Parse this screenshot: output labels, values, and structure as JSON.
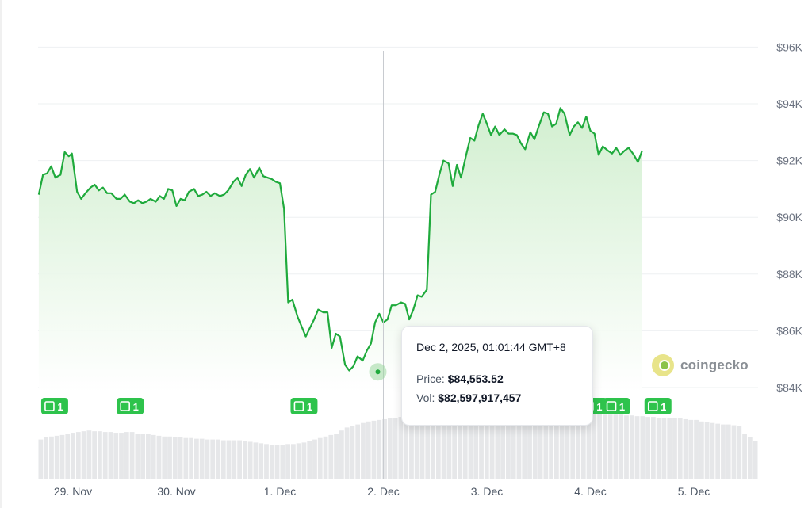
{
  "chart_data": {
    "type": "area",
    "title": "",
    "y_unit": "USD",
    "ylim": [
      83000,
      96000
    ],
    "y_ticks": [
      {
        "value": 84000,
        "label": "$84K"
      },
      {
        "value": 86000,
        "label": "$86K"
      },
      {
        "value": 88000,
        "label": "$88K"
      },
      {
        "value": 90000,
        "label": "$90K"
      },
      {
        "value": 92000,
        "label": "$92K"
      },
      {
        "value": 94000,
        "label": "$94K"
      },
      {
        "value": 96000,
        "label": "$96K"
      }
    ],
    "x_ticks": [
      {
        "t": 0.0,
        "label": "29. Nov"
      },
      {
        "t": 1.0,
        "label": "30. Nov"
      },
      {
        "t": 2.0,
        "label": "1. Dec"
      },
      {
        "t": 3.0,
        "label": "2. Dec"
      },
      {
        "t": 4.0,
        "label": "3. Dec"
      },
      {
        "t": 5.0,
        "label": "4. Dec"
      },
      {
        "t": 6.0,
        "label": "5. Dec"
      }
    ],
    "x_unit_note": "x values are days after 29 Nov 2025 00:00 (axis labels)",
    "grid": true,
    "line_color": "#1faa3c",
    "fill_color": "#dff3dc",
    "series": [
      {
        "values": [
          [
            -0.33,
            90800
          ],
          [
            -0.29,
            91500
          ],
          [
            -0.25,
            91550
          ],
          [
            -0.21,
            91800
          ],
          [
            -0.17,
            91400
          ],
          [
            -0.12,
            91500
          ],
          [
            -0.08,
            92300
          ],
          [
            -0.04,
            92150
          ],
          [
            -0.01,
            92250
          ],
          [
            0.04,
            90900
          ],
          [
            0.08,
            90650
          ],
          [
            0.12,
            90850
          ],
          [
            0.17,
            91050
          ],
          [
            0.21,
            91150
          ],
          [
            0.25,
            90950
          ],
          [
            0.29,
            91050
          ],
          [
            0.33,
            90850
          ],
          [
            0.37,
            90850
          ],
          [
            0.42,
            90650
          ],
          [
            0.46,
            90650
          ],
          [
            0.5,
            90800
          ],
          [
            0.55,
            90550
          ],
          [
            0.59,
            90500
          ],
          [
            0.63,
            90600
          ],
          [
            0.67,
            90500
          ],
          [
            0.71,
            90550
          ],
          [
            0.75,
            90650
          ],
          [
            0.8,
            90550
          ],
          [
            0.84,
            90750
          ],
          [
            0.88,
            90650
          ],
          [
            0.92,
            91000
          ],
          [
            0.96,
            90950
          ],
          [
            1.0,
            90400
          ],
          [
            1.04,
            90650
          ],
          [
            1.08,
            90600
          ],
          [
            1.12,
            90900
          ],
          [
            1.17,
            91000
          ],
          [
            1.21,
            90750
          ],
          [
            1.25,
            90800
          ],
          [
            1.29,
            90900
          ],
          [
            1.33,
            90750
          ],
          [
            1.37,
            90850
          ],
          [
            1.42,
            90750
          ],
          [
            1.46,
            90800
          ],
          [
            1.5,
            90950
          ],
          [
            1.55,
            91250
          ],
          [
            1.59,
            91400
          ],
          [
            1.63,
            91100
          ],
          [
            1.67,
            91500
          ],
          [
            1.71,
            91700
          ],
          [
            1.75,
            91400
          ],
          [
            1.8,
            91750
          ],
          [
            1.84,
            91450
          ],
          [
            1.88,
            91400
          ],
          [
            1.92,
            91350
          ],
          [
            1.96,
            91250
          ],
          [
            2.0,
            91200
          ],
          [
            2.04,
            90300
          ],
          [
            2.08,
            87000
          ],
          [
            2.12,
            87100
          ],
          [
            2.17,
            86500
          ],
          [
            2.21,
            86150
          ],
          [
            2.25,
            85800
          ],
          [
            2.29,
            86100
          ],
          [
            2.33,
            86400
          ],
          [
            2.37,
            86750
          ],
          [
            2.42,
            86650
          ],
          [
            2.46,
            86650
          ],
          [
            2.5,
            85400
          ],
          [
            2.54,
            85900
          ],
          [
            2.58,
            85800
          ],
          [
            2.63,
            84800
          ],
          [
            2.67,
            84600
          ],
          [
            2.71,
            84750
          ],
          [
            2.75,
            85100
          ],
          [
            2.8,
            84950
          ],
          [
            2.84,
            85300
          ],
          [
            2.88,
            85550
          ],
          [
            2.92,
            86300
          ],
          [
            2.96,
            86600
          ],
          [
            3.0,
            86300
          ],
          [
            3.04,
            86400
          ],
          [
            3.08,
            86900
          ],
          [
            3.12,
            86900
          ],
          [
            3.17,
            87000
          ],
          [
            3.21,
            86950
          ],
          [
            3.25,
            86400
          ],
          [
            3.29,
            86750
          ],
          [
            3.33,
            87250
          ],
          [
            3.37,
            87200
          ],
          [
            3.42,
            87450
          ],
          [
            3.46,
            90800
          ],
          [
            3.5,
            90900
          ],
          [
            3.54,
            91500
          ],
          [
            3.58,
            92000
          ],
          [
            3.63,
            91900
          ],
          [
            3.67,
            91100
          ],
          [
            3.71,
            91850
          ],
          [
            3.75,
            91400
          ],
          [
            3.8,
            92200
          ],
          [
            3.84,
            92800
          ],
          [
            3.88,
            92700
          ],
          [
            3.92,
            93250
          ],
          [
            3.96,
            93650
          ],
          [
            4.0,
            93300
          ],
          [
            4.04,
            92900
          ],
          [
            4.08,
            93200
          ],
          [
            4.12,
            92900
          ],
          [
            4.17,
            93100
          ],
          [
            4.21,
            92950
          ],
          [
            4.25,
            92950
          ],
          [
            4.29,
            92900
          ],
          [
            4.33,
            92600
          ],
          [
            4.37,
            92400
          ],
          [
            4.42,
            93000
          ],
          [
            4.46,
            92750
          ],
          [
            4.5,
            93200
          ],
          [
            4.55,
            93700
          ],
          [
            4.59,
            93650
          ],
          [
            4.63,
            93200
          ],
          [
            4.67,
            93300
          ],
          [
            4.71,
            93850
          ],
          [
            4.75,
            93650
          ],
          [
            4.8,
            92900
          ],
          [
            4.84,
            93200
          ],
          [
            4.88,
            93350
          ],
          [
            4.92,
            93150
          ],
          [
            4.96,
            93550
          ],
          [
            5.0,
            93050
          ],
          [
            5.04,
            92950
          ],
          [
            5.08,
            92200
          ],
          [
            5.12,
            92500
          ],
          [
            5.17,
            92350
          ],
          [
            5.21,
            92250
          ],
          [
            5.25,
            92450
          ],
          [
            5.29,
            92200
          ],
          [
            5.33,
            92350
          ],
          [
            5.37,
            92450
          ],
          [
            5.42,
            92200
          ],
          [
            5.46,
            91950
          ],
          [
            5.5,
            92350
          ]
        ]
      }
    ],
    "news_badges": [
      {
        "t": -0.33,
        "label": "1"
      },
      {
        "t": 0.4,
        "label": "1"
      },
      {
        "t": 2.08,
        "label": "1"
      },
      {
        "t": 4.88,
        "label": "1"
      },
      {
        "t": 5.1,
        "label": "1"
      },
      {
        "t": 5.5,
        "label": "1"
      }
    ],
    "volume_bars": [
      0.52,
      0.55,
      0.56,
      0.57,
      0.58,
      0.6,
      0.61,
      0.62,
      0.63,
      0.64,
      0.63,
      0.63,
      0.62,
      0.62,
      0.61,
      0.61,
      0.62,
      0.62,
      0.6,
      0.6,
      0.59,
      0.58,
      0.57,
      0.56,
      0.56,
      0.55,
      0.55,
      0.54,
      0.54,
      0.53,
      0.53,
      0.52,
      0.52,
      0.52,
      0.51,
      0.51,
      0.51,
      0.51,
      0.5,
      0.49,
      0.48,
      0.47,
      0.46,
      0.45,
      0.45,
      0.45,
      0.46,
      0.46,
      0.47,
      0.48,
      0.5,
      0.52,
      0.54,
      0.56,
      0.58,
      0.6,
      0.64,
      0.68,
      0.7,
      0.72,
      0.74,
      0.76,
      0.77,
      0.78,
      0.79,
      0.8,
      0.81,
      0.82,
      0.83,
      0.84,
      0.85,
      0.86,
      0.86,
      0.87,
      0.87,
      0.88,
      0.88,
      0.89,
      0.89,
      0.9,
      0.9,
      0.9,
      0.9,
      0.9,
      0.9,
      0.89,
      0.89,
      0.88,
      0.88,
      0.87,
      0.87,
      0.86,
      0.86,
      0.86,
      0.86,
      0.86,
      0.85,
      0.85,
      0.85,
      0.85,
      0.86,
      0.86,
      0.86,
      0.86,
      0.86,
      0.85,
      0.85,
      0.85,
      0.85,
      0.84,
      0.84,
      0.83,
      0.83,
      0.82,
      0.82,
      0.81,
      0.8,
      0.8,
      0.8,
      0.8,
      0.79,
      0.78,
      0.78,
      0.76,
      0.75,
      0.74,
      0.73,
      0.72,
      0.72,
      0.71,
      0.7,
      0.6,
      0.55,
      0.5
    ],
    "hover": {
      "t": 3.0,
      "date": "Dec 2, 2025, 01:01:44 GMT+8",
      "price_label": "Price:",
      "price_value": "$84,553.52",
      "vol_label": "Vol:",
      "vol_value": "$82,597,917,457"
    }
  },
  "brand": {
    "name": "coingecko"
  }
}
